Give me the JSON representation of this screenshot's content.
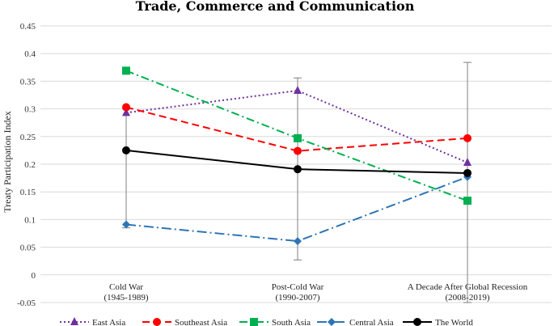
{
  "chart_data": {
    "type": "line",
    "title": "Trade, Commerce and Communication",
    "ylabel": "Treaty Participation Index",
    "xlabel": "",
    "ylim": [
      -0.05,
      0.45
    ],
    "yticks": [
      "0.45",
      "0.4",
      "0.35",
      "0.3",
      "0.25",
      "0.2",
      "0.15",
      "0.1",
      "0.05",
      "0",
      "-0.05"
    ],
    "categories": [
      {
        "line1": "Cold War",
        "line2": "(1945-1989)"
      },
      {
        "line1": "Post-Cold War",
        "line2": "(1990-2007)"
      },
      {
        "line1": "A Decade After Global Recession",
        "line2": "(2008-2019)"
      }
    ],
    "error_bars": [
      {
        "category": 0,
        "low": 0.085,
        "high": 0.3
      },
      {
        "category": 1,
        "low": 0.027,
        "high": 0.356
      },
      {
        "category": 2,
        "low": -0.05,
        "high": 0.384
      }
    ],
    "series": [
      {
        "name": "East Asia",
        "values": [
          0.293,
          0.333,
          0.203
        ],
        "color": "#7030a0",
        "dash": "2,3",
        "marker": "triangle"
      },
      {
        "name": "Southeast Asia",
        "values": [
          0.303,
          0.224,
          0.247
        ],
        "color": "#ff0000",
        "dash": "9,5",
        "marker": "circle"
      },
      {
        "name": "South Asia",
        "values": [
          0.369,
          0.247,
          0.134
        ],
        "color": "#00b050",
        "dash": "10,4,2,4",
        "marker": "square"
      },
      {
        "name": "Central Asia",
        "values": [
          0.091,
          0.061,
          0.177
        ],
        "color": "#2e75b6",
        "dash": "12,4,2,4",
        "marker": "diamond"
      },
      {
        "name": "The World",
        "values": [
          0.225,
          0.191,
          0.184
        ],
        "color": "#000000",
        "dash": "",
        "marker": "circle"
      }
    ],
    "legend_position": "bottom"
  }
}
